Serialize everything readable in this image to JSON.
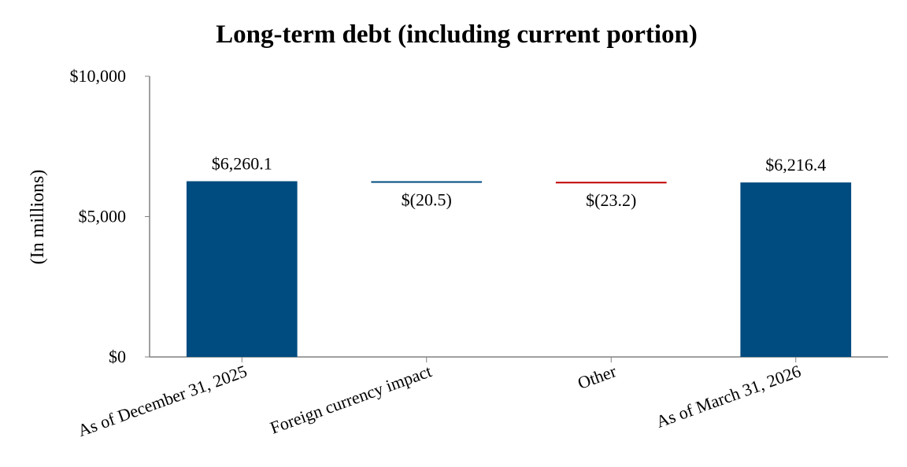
{
  "chart_data": {
    "type": "bar",
    "subtype": "waterfall",
    "title": "Long-term debt (including current portion)",
    "xlabel": "",
    "ylabel": "(In millions)",
    "ylim": [
      0,
      10000
    ],
    "yticks": [
      0,
      5000,
      10000
    ],
    "ytick_labels": [
      "$0",
      "$5,000",
      "$10,000"
    ],
    "grid": false,
    "legend": "none",
    "categories": [
      "As of December 31, 2025",
      "Foreign currency impact",
      "Other",
      "As of March 31, 2026"
    ],
    "steps": [
      {
        "kind": "total",
        "value": 6260.1,
        "label": "$6,260.1",
        "color": "#004B80"
      },
      {
        "kind": "delta",
        "value": -20.5,
        "label": "$(20.5)",
        "color": "#004B80"
      },
      {
        "kind": "delta",
        "value": -23.2,
        "label": "$(23.2)",
        "color": "#C00000"
      },
      {
        "kind": "total",
        "value": 6216.4,
        "label": "$6,216.4",
        "color": "#004B80"
      }
    ]
  }
}
